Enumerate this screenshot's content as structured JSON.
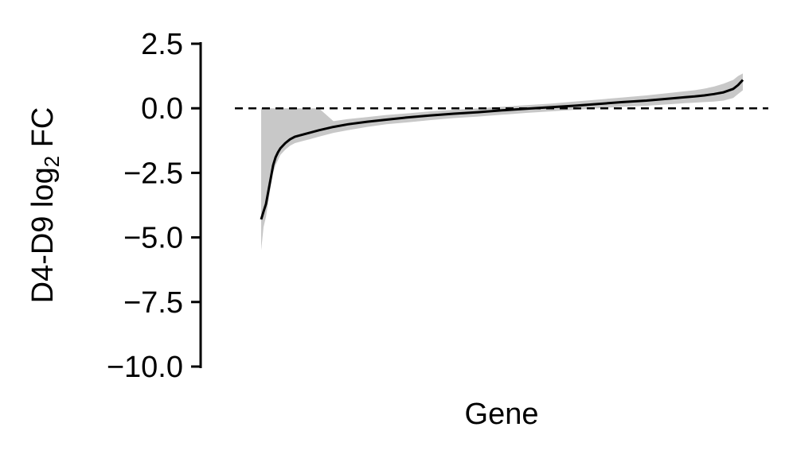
{
  "chart_data": {
    "type": "line",
    "xlabel": "Gene",
    "ylabel": {
      "prefix": "D4-D9 log",
      "subscript": "2",
      "suffix": " FC"
    },
    "ylim": [
      -10.0,
      2.5
    ],
    "yticks": [
      2.5,
      0.0,
      -2.5,
      -5.0,
      -7.5,
      -10.0
    ],
    "ytick_labels": [
      "2.5",
      "0.0",
      "−2.5",
      "−5.0",
      "−7.5",
      "−10.0"
    ],
    "reference_line": {
      "y": 0.0,
      "style": "dashed",
      "color": "#000000"
    },
    "xlim": [
      0,
      100
    ],
    "series": [
      {
        "x": [
          0,
          0.5,
          1,
          1.5,
          2,
          2.5,
          3,
          3.5,
          4,
          5,
          6,
          7,
          8,
          10,
          12,
          15,
          18,
          22,
          26,
          30,
          35,
          40,
          45,
          50,
          55,
          60,
          65,
          70,
          75,
          80,
          85,
          88,
          90,
          92,
          94,
          96,
          98,
          99,
          100
        ],
        "y": [
          -4.3,
          -4.0,
          -3.7,
          -3.2,
          -2.7,
          -2.2,
          -1.9,
          -1.7,
          -1.55,
          -1.35,
          -1.2,
          -1.1,
          -1.05,
          -0.95,
          -0.85,
          -0.72,
          -0.62,
          -0.52,
          -0.44,
          -0.36,
          -0.28,
          -0.21,
          -0.15,
          -0.08,
          -0.02,
          0.04,
          0.1,
          0.17,
          0.24,
          0.3,
          0.38,
          0.43,
          0.46,
          0.5,
          0.55,
          0.62,
          0.75,
          0.9,
          1.1
        ],
        "color": "#000000",
        "band_color": "#c8c8c8",
        "band_lower": [
          -5.5,
          -4.6,
          -4.2,
          -3.6,
          -3.0,
          -2.5,
          -2.2,
          -2.0,
          -1.8,
          -1.6,
          -1.45,
          -1.35,
          -1.3,
          -1.2,
          -1.1,
          -0.95,
          -0.85,
          -0.72,
          -0.62,
          -0.55,
          -0.46,
          -0.38,
          -0.32,
          -0.25,
          -0.18,
          -0.12,
          -0.06,
          0.0,
          0.06,
          0.1,
          0.16,
          0.2,
          0.22,
          0.24,
          0.26,
          0.3,
          0.4,
          0.55,
          0.7
        ],
        "band_upper": [
          0.0,
          0.0,
          0.0,
          0.0,
          0.0,
          0.0,
          0.0,
          0.0,
          0.0,
          0.0,
          0.0,
          0.0,
          0.0,
          0.0,
          0.0,
          -0.5,
          -0.42,
          -0.34,
          -0.26,
          -0.2,
          -0.12,
          -0.06,
          0.0,
          0.06,
          0.12,
          0.18,
          0.26,
          0.34,
          0.42,
          0.5,
          0.6,
          0.66,
          0.7,
          0.76,
          0.84,
          0.95,
          1.1,
          1.25,
          1.35
        ]
      }
    ],
    "grid": false
  }
}
